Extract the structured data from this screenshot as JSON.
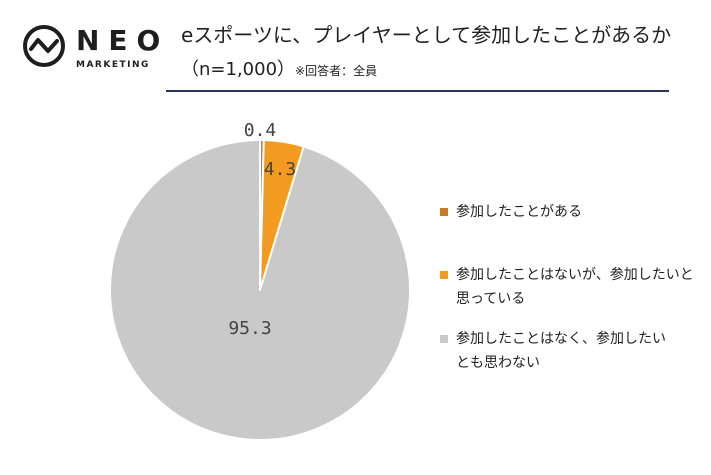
{
  "logo": {
    "name": "NEO",
    "sub": "MARKETING"
  },
  "header": {
    "title": "eスポーツに、プレイヤーとして参加したことがあるか",
    "subtitle": "（n=1,000）",
    "note": "※回答者：全員"
  },
  "chart_data": {
    "type": "pie",
    "slices": [
      {
        "label": "参加したことがある",
        "value": 0.4,
        "color": "#c5792a"
      },
      {
        "label": "参加したことはないが、参加したいと思っている",
        "value": 4.3,
        "color": "#f39a20"
      },
      {
        "label": "参加したことはなく、参加したいとも思わない",
        "value": 95.3,
        "color": "#c9c9c9"
      }
    ],
    "legend_position": "right",
    "start_angle_deg": 0,
    "direction": "clockwise"
  },
  "legend": {
    "items": [
      {
        "label": "参加したことがある"
      },
      {
        "label": "参加したことはないが、参加したいと思っている"
      },
      {
        "label": "参加したことはなく、参加したいとも思わない"
      }
    ]
  }
}
